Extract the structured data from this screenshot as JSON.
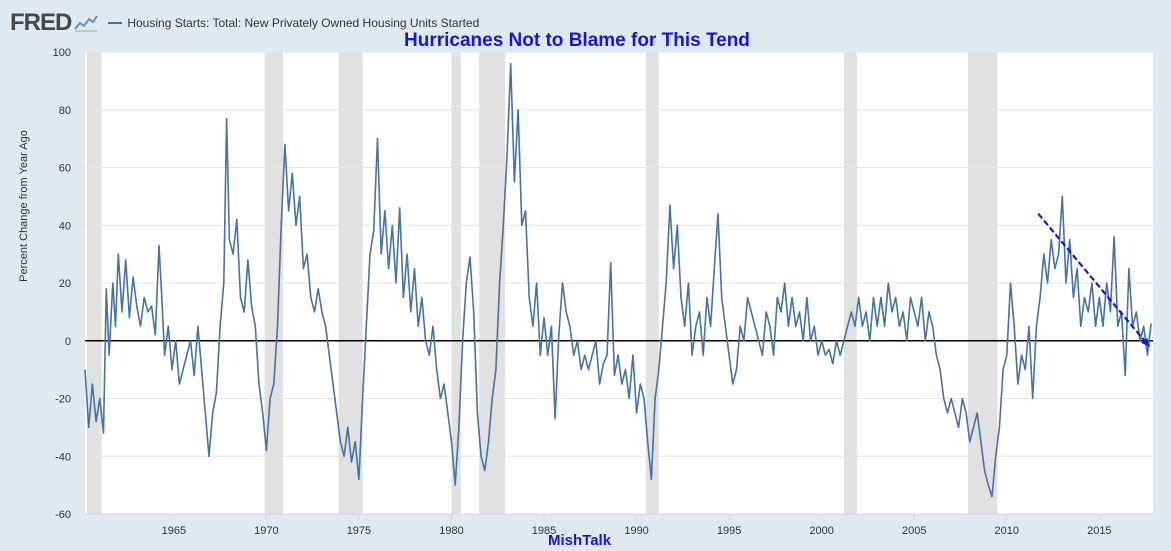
{
  "header": {
    "logo": "FRED",
    "logo_icon": "line-chart-icon"
  },
  "annotation": {
    "title": "Hurricanes Not to Blame for This Tend",
    "watermark": "MishTalk",
    "arrow_color": "#1414e6",
    "arrow_from": [
      2011.7,
      44
    ],
    "arrow_to": [
      2017.7,
      -2
    ]
  },
  "colors": {
    "series": "#4572a7",
    "recession": "#e1e1e1",
    "zero_line": "#000000",
    "annotation": "#1414e6"
  },
  "chart_data": {
    "type": "line",
    "title": "",
    "xlabel": "",
    "ylabel": "Percent Change from Year Ago",
    "xlim": [
      1960.2,
      1965.0
    ],
    "ylim": [
      -60,
      100
    ],
    "yticks": [
      -60,
      -40,
      -20,
      0,
      20,
      40,
      60,
      80,
      100
    ],
    "xticks": [
      1965,
      1970,
      1975,
      1980,
      1985,
      1990,
      1995,
      2000,
      2005,
      2010,
      2015
    ],
    "grid": "horizontal",
    "legend": "top-left",
    "recessions": [
      [
        1960.3,
        1961.1
      ],
      [
        1969.9,
        1970.9
      ],
      [
        1973.9,
        1975.2
      ],
      [
        1980.0,
        1980.5
      ],
      [
        1981.5,
        1982.9
      ],
      [
        1990.5,
        1991.2
      ],
      [
        2001.2,
        2001.9
      ],
      [
        2007.9,
        2009.5
      ]
    ],
    "series": [
      {
        "name": "Housing Starts: Total: New Privately Owned Housing Units Started",
        "points": [
          [
            1960.2,
            -10
          ],
          [
            1960.4,
            -30
          ],
          [
            1960.6,
            -15
          ],
          [
            1960.8,
            -28
          ],
          [
            1961.0,
            -20
          ],
          [
            1961.2,
            -32
          ],
          [
            1961.35,
            18
          ],
          [
            1961.5,
            -5
          ],
          [
            1961.7,
            20
          ],
          [
            1961.85,
            5
          ],
          [
            1962.0,
            30
          ],
          [
            1962.2,
            10
          ],
          [
            1962.4,
            28
          ],
          [
            1962.6,
            8
          ],
          [
            1962.8,
            22
          ],
          [
            1963.0,
            12
          ],
          [
            1963.2,
            5
          ],
          [
            1963.4,
            15
          ],
          [
            1963.6,
            10
          ],
          [
            1963.8,
            12
          ],
          [
            1964.0,
            2
          ],
          [
            1964.2,
            33
          ],
          [
            1964.35,
            15
          ],
          [
            1964.5,
            -5
          ],
          [
            1964.7,
            5
          ],
          [
            1964.9,
            -10
          ],
          [
            1965.1,
            0
          ],
          [
            1965.3,
            -15
          ],
          [
            1965.5,
            -10
          ],
          [
            1965.7,
            -5
          ],
          [
            1965.9,
            0
          ],
          [
            1966.1,
            -12
          ],
          [
            1966.3,
            5
          ],
          [
            1966.5,
            -10
          ],
          [
            1966.7,
            -25
          ],
          [
            1966.9,
            -40
          ],
          [
            1967.1,
            -25
          ],
          [
            1967.3,
            -18
          ],
          [
            1967.5,
            5
          ],
          [
            1967.7,
            20
          ],
          [
            1967.85,
            77
          ],
          [
            1968.0,
            35
          ],
          [
            1968.2,
            30
          ],
          [
            1968.4,
            42
          ],
          [
            1968.6,
            15
          ],
          [
            1968.8,
            10
          ],
          [
            1969.0,
            28
          ],
          [
            1969.2,
            12
          ],
          [
            1969.4,
            5
          ],
          [
            1969.6,
            -15
          ],
          [
            1969.8,
            -25
          ],
          [
            1970.0,
            -38
          ],
          [
            1970.2,
            -20
          ],
          [
            1970.4,
            -15
          ],
          [
            1970.6,
            5
          ],
          [
            1970.8,
            40
          ],
          [
            1971.0,
            68
          ],
          [
            1971.2,
            45
          ],
          [
            1971.4,
            58
          ],
          [
            1971.6,
            40
          ],
          [
            1971.8,
            50
          ],
          [
            1972.0,
            25
          ],
          [
            1972.2,
            30
          ],
          [
            1972.4,
            15
          ],
          [
            1972.6,
            10
          ],
          [
            1972.8,
            18
          ],
          [
            1973.0,
            10
          ],
          [
            1973.2,
            5
          ],
          [
            1973.4,
            -5
          ],
          [
            1973.6,
            -15
          ],
          [
            1973.8,
            -25
          ],
          [
            1974.0,
            -35
          ],
          [
            1974.2,
            -40
          ],
          [
            1974.4,
            -30
          ],
          [
            1974.6,
            -42
          ],
          [
            1974.8,
            -35
          ],
          [
            1975.0,
            -48
          ],
          [
            1975.2,
            -20
          ],
          [
            1975.4,
            5
          ],
          [
            1975.6,
            30
          ],
          [
            1975.8,
            38
          ],
          [
            1976.0,
            70
          ],
          [
            1976.2,
            30
          ],
          [
            1976.4,
            45
          ],
          [
            1976.6,
            25
          ],
          [
            1976.8,
            40
          ],
          [
            1977.0,
            20
          ],
          [
            1977.2,
            46
          ],
          [
            1977.4,
            15
          ],
          [
            1977.6,
            30
          ],
          [
            1977.8,
            10
          ],
          [
            1978.0,
            25
          ],
          [
            1978.2,
            5
          ],
          [
            1978.4,
            15
          ],
          [
            1978.6,
            0
          ],
          [
            1978.8,
            -5
          ],
          [
            1979.0,
            5
          ],
          [
            1979.2,
            -10
          ],
          [
            1979.4,
            -20
          ],
          [
            1979.6,
            -15
          ],
          [
            1979.8,
            -25
          ],
          [
            1980.0,
            -35
          ],
          [
            1980.2,
            -50
          ],
          [
            1980.4,
            -30
          ],
          [
            1980.6,
            0
          ],
          [
            1980.8,
            20
          ],
          [
            1981.0,
            29
          ],
          [
            1981.2,
            10
          ],
          [
            1981.4,
            -25
          ],
          [
            1981.6,
            -40
          ],
          [
            1981.8,
            -45
          ],
          [
            1982.0,
            -35
          ],
          [
            1982.2,
            -20
          ],
          [
            1982.4,
            -10
          ],
          [
            1982.6,
            20
          ],
          [
            1982.8,
            40
          ],
          [
            1983.0,
            64
          ],
          [
            1983.2,
            96
          ],
          [
            1983.4,
            55
          ],
          [
            1983.6,
            80
          ],
          [
            1983.8,
            40
          ],
          [
            1984.0,
            45
          ],
          [
            1984.2,
            15
          ],
          [
            1984.4,
            5
          ],
          [
            1984.6,
            20
          ],
          [
            1984.8,
            -5
          ],
          [
            1985.0,
            8
          ],
          [
            1985.2,
            -5
          ],
          [
            1985.4,
            5
          ],
          [
            1985.6,
            -27
          ],
          [
            1985.8,
            2
          ],
          [
            1986.0,
            20
          ],
          [
            1986.2,
            10
          ],
          [
            1986.4,
            5
          ],
          [
            1986.6,
            -5
          ],
          [
            1986.8,
            0
          ],
          [
            1987.0,
            -10
          ],
          [
            1987.2,
            -5
          ],
          [
            1987.4,
            -10
          ],
          [
            1987.6,
            -5
          ],
          [
            1987.8,
            0
          ],
          [
            1988.0,
            -15
          ],
          [
            1988.2,
            -8
          ],
          [
            1988.4,
            -5
          ],
          [
            1988.6,
            27
          ],
          [
            1988.8,
            -12
          ],
          [
            1989.0,
            -5
          ],
          [
            1989.2,
            -15
          ],
          [
            1989.4,
            -10
          ],
          [
            1989.6,
            -20
          ],
          [
            1989.8,
            -5
          ],
          [
            1990.0,
            -25
          ],
          [
            1990.2,
            -15
          ],
          [
            1990.4,
            -20
          ],
          [
            1990.6,
            -35
          ],
          [
            1990.8,
            -48
          ],
          [
            1991.0,
            -20
          ],
          [
            1991.2,
            -10
          ],
          [
            1991.4,
            5
          ],
          [
            1991.6,
            20
          ],
          [
            1991.8,
            47
          ],
          [
            1992.0,
            25
          ],
          [
            1992.2,
            40
          ],
          [
            1992.4,
            15
          ],
          [
            1992.6,
            5
          ],
          [
            1992.8,
            20
          ],
          [
            1993.0,
            -5
          ],
          [
            1993.2,
            5
          ],
          [
            1993.4,
            10
          ],
          [
            1993.6,
            -5
          ],
          [
            1993.8,
            15
          ],
          [
            1994.0,
            5
          ],
          [
            1994.2,
            25
          ],
          [
            1994.4,
            44
          ],
          [
            1994.6,
            15
          ],
          [
            1994.8,
            5
          ],
          [
            1995.0,
            -5
          ],
          [
            1995.2,
            -15
          ],
          [
            1995.4,
            -10
          ],
          [
            1995.6,
            5
          ],
          [
            1995.8,
            0
          ],
          [
            1996.0,
            15
          ],
          [
            1996.2,
            10
          ],
          [
            1996.4,
            5
          ],
          [
            1996.6,
            0
          ],
          [
            1996.8,
            -5
          ],
          [
            1997.0,
            10
          ],
          [
            1997.2,
            5
          ],
          [
            1997.4,
            -5
          ],
          [
            1997.6,
            15
          ],
          [
            1997.8,
            10
          ],
          [
            1998.0,
            20
          ],
          [
            1998.2,
            5
          ],
          [
            1998.4,
            15
          ],
          [
            1998.6,
            5
          ],
          [
            1998.8,
            10
          ],
          [
            1999.0,
            0
          ],
          [
            1999.2,
            15
          ],
          [
            1999.4,
            0
          ],
          [
            1999.6,
            5
          ],
          [
            1999.8,
            -5
          ],
          [
            2000.0,
            0
          ],
          [
            2000.2,
            -5
          ],
          [
            2000.4,
            -3
          ],
          [
            2000.6,
            -8
          ],
          [
            2000.8,
            0
          ],
          [
            2001.0,
            -5
          ],
          [
            2001.2,
            0
          ],
          [
            2001.4,
            5
          ],
          [
            2001.6,
            10
          ],
          [
            2001.8,
            5
          ],
          [
            2002.0,
            15
          ],
          [
            2002.2,
            5
          ],
          [
            2002.4,
            10
          ],
          [
            2002.6,
            0
          ],
          [
            2002.8,
            15
          ],
          [
            2003.0,
            5
          ],
          [
            2003.2,
            15
          ],
          [
            2003.4,
            5
          ],
          [
            2003.6,
            20
          ],
          [
            2003.8,
            10
          ],
          [
            2004.0,
            15
          ],
          [
            2004.2,
            5
          ],
          [
            2004.4,
            10
          ],
          [
            2004.6,
            0
          ],
          [
            2004.8,
            15
          ],
          [
            2005.0,
            10
          ],
          [
            2005.2,
            5
          ],
          [
            2005.4,
            15
          ],
          [
            2005.6,
            0
          ],
          [
            2005.8,
            10
          ],
          [
            2006.0,
            5
          ],
          [
            2006.2,
            -5
          ],
          [
            2006.4,
            -10
          ],
          [
            2006.6,
            -20
          ],
          [
            2006.8,
            -25
          ],
          [
            2007.0,
            -20
          ],
          [
            2007.2,
            -25
          ],
          [
            2007.4,
            -30
          ],
          [
            2007.6,
            -20
          ],
          [
            2007.8,
            -25
          ],
          [
            2008.0,
            -35
          ],
          [
            2008.2,
            -30
          ],
          [
            2008.4,
            -25
          ],
          [
            2008.6,
            -35
          ],
          [
            2008.8,
            -45
          ],
          [
            2009.0,
            -50
          ],
          [
            2009.2,
            -54
          ],
          [
            2009.4,
            -40
          ],
          [
            2009.6,
            -30
          ],
          [
            2009.8,
            -10
          ],
          [
            2010.0,
            -5
          ],
          [
            2010.2,
            20
          ],
          [
            2010.4,
            5
          ],
          [
            2010.6,
            -15
          ],
          [
            2010.8,
            -5
          ],
          [
            2011.0,
            -10
          ],
          [
            2011.2,
            5
          ],
          [
            2011.4,
            -20
          ],
          [
            2011.6,
            5
          ],
          [
            2011.8,
            15
          ],
          [
            2012.0,
            30
          ],
          [
            2012.2,
            20
          ],
          [
            2012.4,
            35
          ],
          [
            2012.6,
            25
          ],
          [
            2012.8,
            30
          ],
          [
            2013.0,
            50
          ],
          [
            2013.2,
            20
          ],
          [
            2013.4,
            35
          ],
          [
            2013.6,
            15
          ],
          [
            2013.8,
            25
          ],
          [
            2014.0,
            5
          ],
          [
            2014.2,
            15
          ],
          [
            2014.4,
            10
          ],
          [
            2014.6,
            20
          ],
          [
            2014.8,
            5
          ],
          [
            2015.0,
            15
          ],
          [
            2015.2,
            5
          ],
          [
            2015.4,
            20
          ],
          [
            2015.6,
            10
          ],
          [
            2015.8,
            36
          ],
          [
            2016.0,
            5
          ],
          [
            2016.2,
            10
          ],
          [
            2016.4,
            -12
          ],
          [
            2016.6,
            25
          ],
          [
            2016.8,
            5
          ],
          [
            2017.0,
            10
          ],
          [
            2017.2,
            0
          ],
          [
            2017.4,
            5
          ],
          [
            2017.6,
            -5
          ],
          [
            2017.8,
            6
          ]
        ]
      }
    ]
  }
}
